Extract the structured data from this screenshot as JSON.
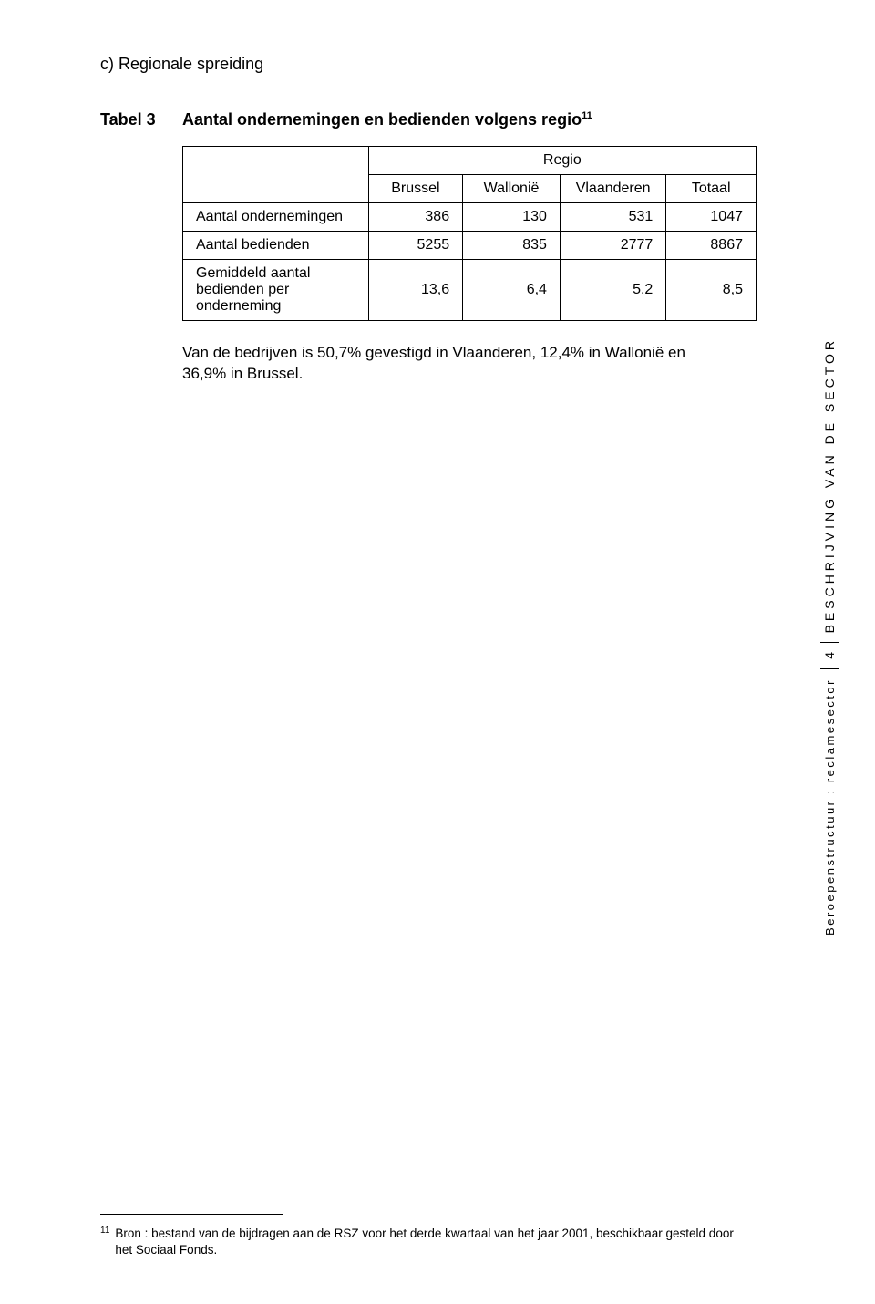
{
  "section_heading": "c)  Regionale spreiding",
  "tabel_label": "Tabel 3",
  "tabel_title_pre": "Aantal ondernemingen en bedienden volgens regio",
  "tabel_title_sup": "11",
  "table": {
    "span_header": "Regio",
    "columns": [
      "Brussel",
      "Wallonië",
      "Vlaanderen",
      "Totaal"
    ],
    "rows": [
      {
        "label": "Aantal ondernemingen",
        "values": [
          "386",
          "130",
          "531",
          "1047"
        ]
      },
      {
        "label": "Aantal bedienden",
        "values": [
          "5255",
          "835",
          "2777",
          "8867"
        ]
      },
      {
        "label": "Gemiddeld aantal bedienden per onderneming",
        "values": [
          "13,6",
          "6,4",
          "5,2",
          "8,5"
        ]
      }
    ]
  },
  "paragraph": "Van de bedrijven is 50,7% gevestigd in Vlaanderen, 12,4% in Wallonië en 36,9% in Brussel.",
  "side": {
    "upper": "BESCHRIJVING VAN DE SECTOR",
    "page_num": "4",
    "lower": "Beroepenstructuur : reclamesector"
  },
  "footnote": {
    "num": "11",
    "text_line1": "Bron : bestand van de bijdragen aan de RSZ voor het derde kwartaal van het jaar 2001, beschikbaar gesteld door",
    "text_line2": "het Sociaal Fonds."
  }
}
